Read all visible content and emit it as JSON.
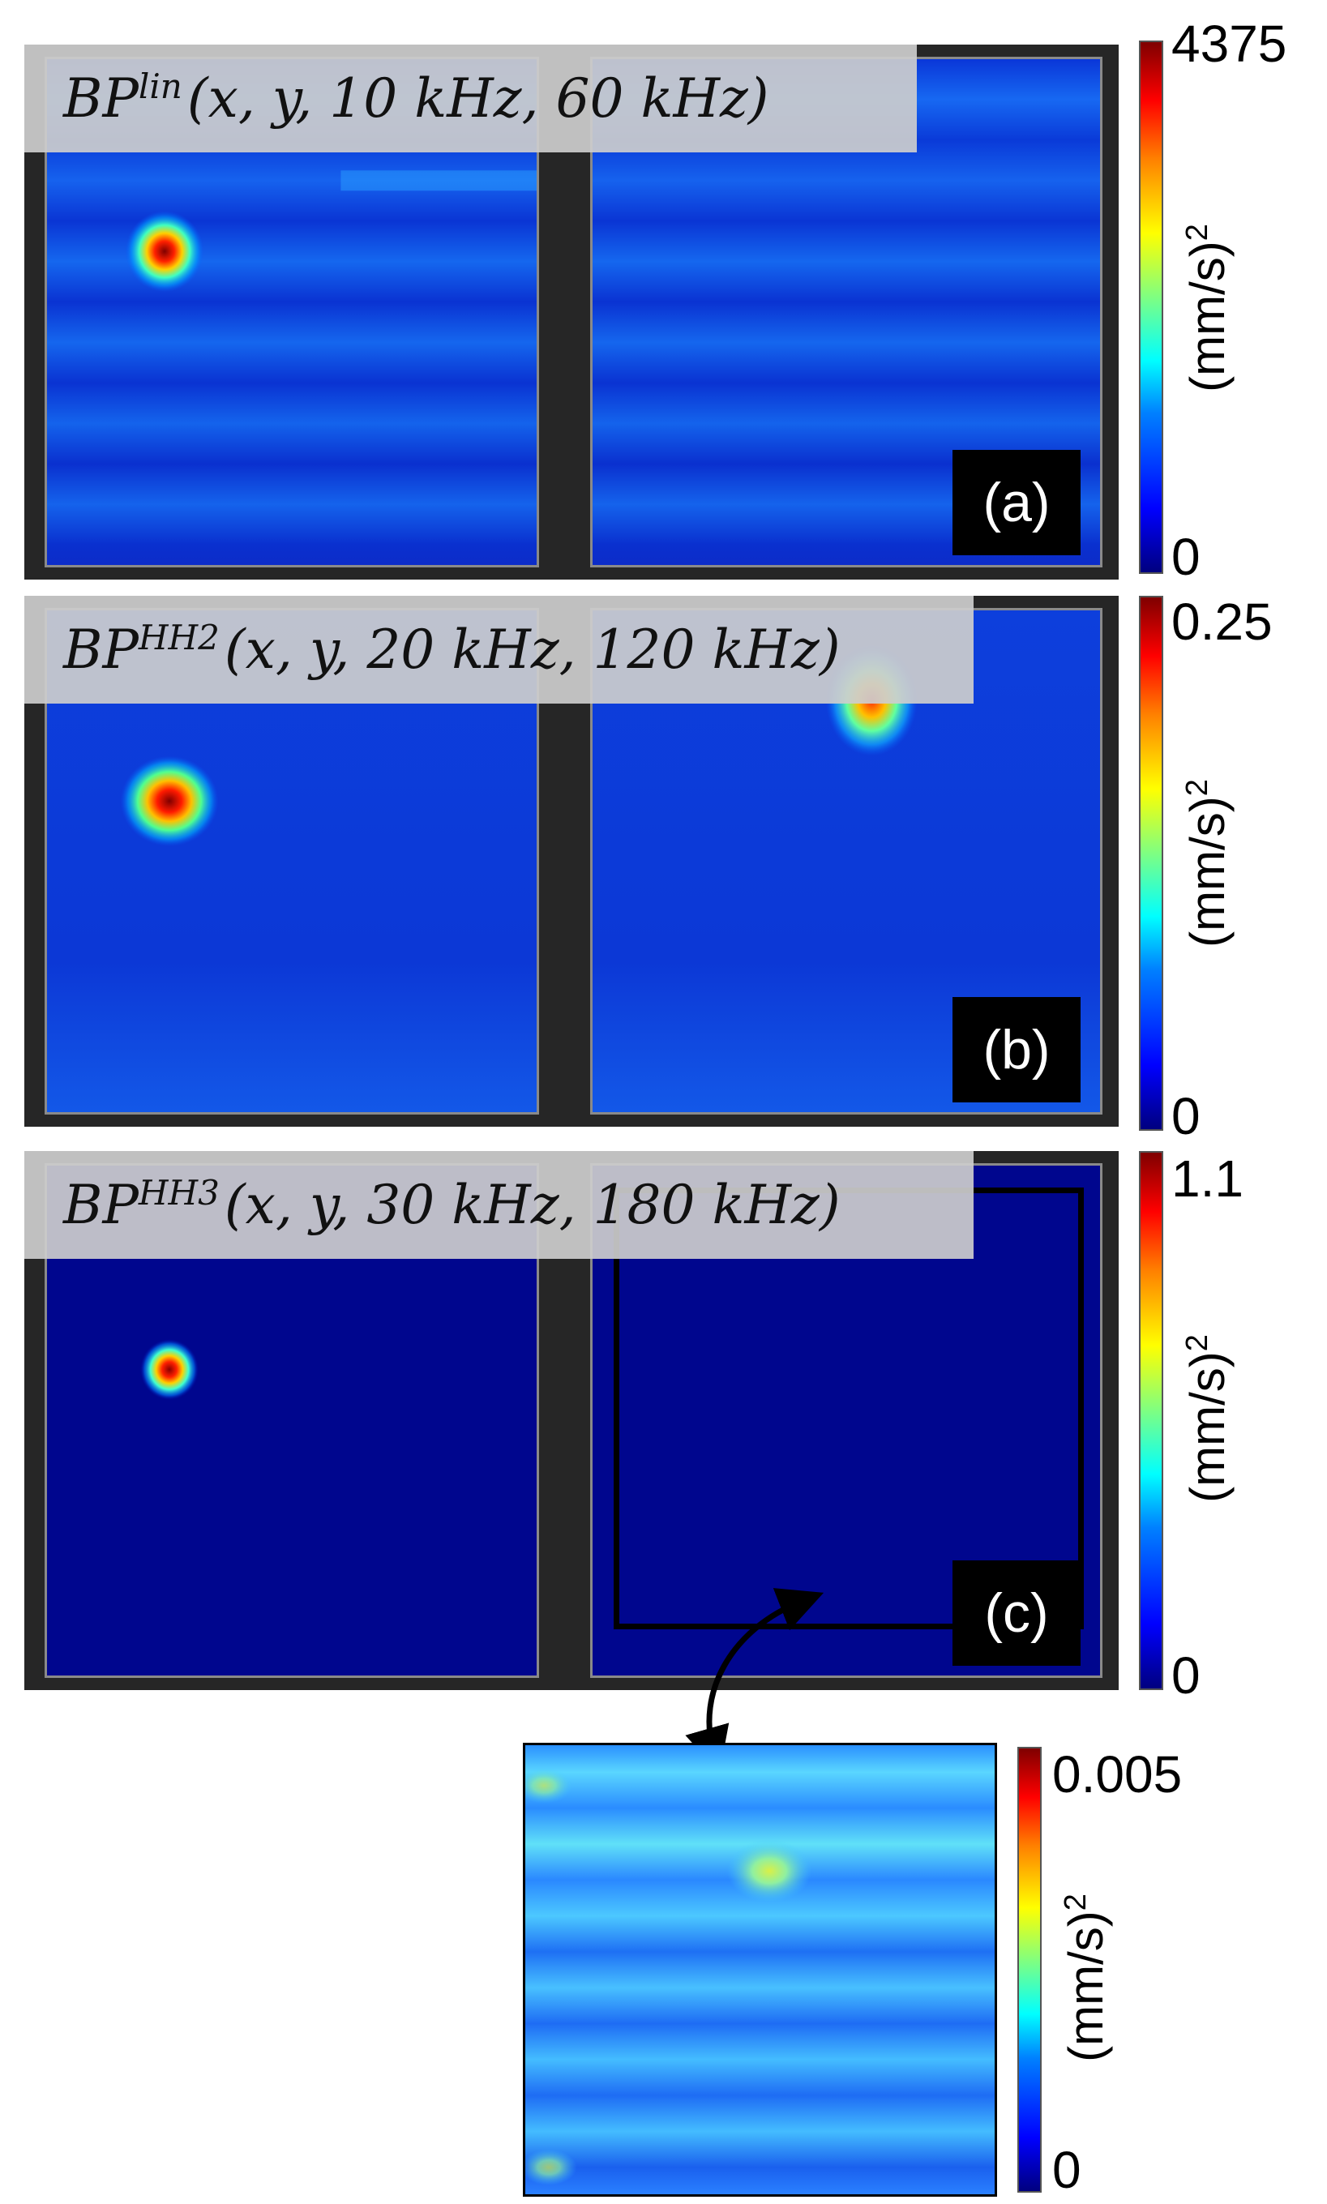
{
  "chart_data": [
    {
      "type": "heatmap",
      "panel_label": "(a)",
      "title_base": "BP",
      "title_sup": "lin",
      "title_args": "(x, y, 10 kHz, 60 kHz)",
      "colorbar": {
        "max_label": "4375",
        "min_label": "0",
        "unit": "(mm/s)",
        "unit_sup": "2",
        "range": [
          0,
          4375
        ]
      },
      "hotspots": [
        {
          "region": "left",
          "peak_fraction": 1.0
        }
      ],
      "background_pattern": "horizontal stripes"
    },
    {
      "type": "heatmap",
      "panel_label": "(b)",
      "title_base": "BP",
      "title_sup": "HH2",
      "title_args": "(x, y, 20 kHz, 120 kHz)",
      "colorbar": {
        "max_label": "0.25",
        "min_label": "0",
        "unit": "(mm/s)",
        "unit_sup": "2",
        "range": [
          0,
          0.25
        ]
      },
      "hotspots": [
        {
          "region": "left",
          "peak_fraction": 1.0
        },
        {
          "region": "right",
          "peak_fraction": 0.85
        }
      ],
      "background_pattern": "diffuse"
    },
    {
      "type": "heatmap",
      "panel_label": "(c)",
      "title_base": "BP",
      "title_sup": "HH3",
      "title_args": "(x, y, 30 kHz, 180 kHz)",
      "colorbar": {
        "max_label": "1.1",
        "min_label": "0",
        "unit": "(mm/s)",
        "unit_sup": "2",
        "range": [
          0,
          1.1
        ]
      },
      "hotspots": [
        {
          "region": "left",
          "peak_fraction": 1.0
        }
      ],
      "background_pattern": "uniform"
    },
    {
      "type": "heatmap",
      "panel_label": "",
      "title_base": "",
      "title_sup": "",
      "title_args": "",
      "colorbar": {
        "max_label": "0.005",
        "min_label": "0",
        "unit": "(mm/s)",
        "unit_sup": "2",
        "range": [
          0,
          0.005
        ]
      },
      "hotspots": [
        {
          "region": "center",
          "peak_fraction": 0.6
        }
      ],
      "background_pattern": "horizontal stripes",
      "note_inset_of": "(c)"
    }
  ],
  "colors": {
    "panel_background": "#262626",
    "label_background": "#000000",
    "title_background": "#cdcdcd"
  }
}
